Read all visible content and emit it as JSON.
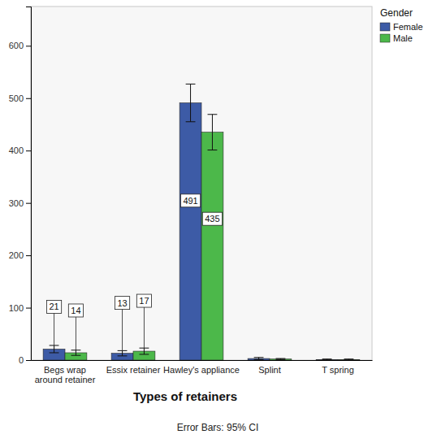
{
  "chart_data": {
    "type": "bar",
    "x_label": "Types of retainers",
    "legend_title": "Gender",
    "annotations": [
      "Error Bars: 95% CI"
    ],
    "categories": [
      "Begs wrap around retainer",
      "Essix retainer",
      "Hawley's appliance",
      "Splint",
      "T spring"
    ],
    "series": [
      {
        "name": "Female",
        "color": "#3d5ba6",
        "values": [
          21,
          13,
          491,
          3,
          1
        ],
        "errors": [
          7,
          5,
          36,
          2,
          1
        ],
        "value_labels": [
          "21",
          "13",
          "491",
          null,
          null
        ]
      },
      {
        "name": "Male",
        "color": "#4cb84a",
        "values": [
          14,
          17,
          435,
          2,
          1
        ],
        "errors": [
          5,
          6,
          34,
          1,
          1
        ],
        "value_labels": [
          "14",
          "17",
          "435",
          null,
          null
        ]
      }
    ],
    "ylim": [
      0,
      675
    ],
    "yticks": [
      0,
      100,
      200,
      300,
      400,
      500,
      600
    ],
    "grid": false,
    "legend": "top-right",
    "data_labels": true
  }
}
